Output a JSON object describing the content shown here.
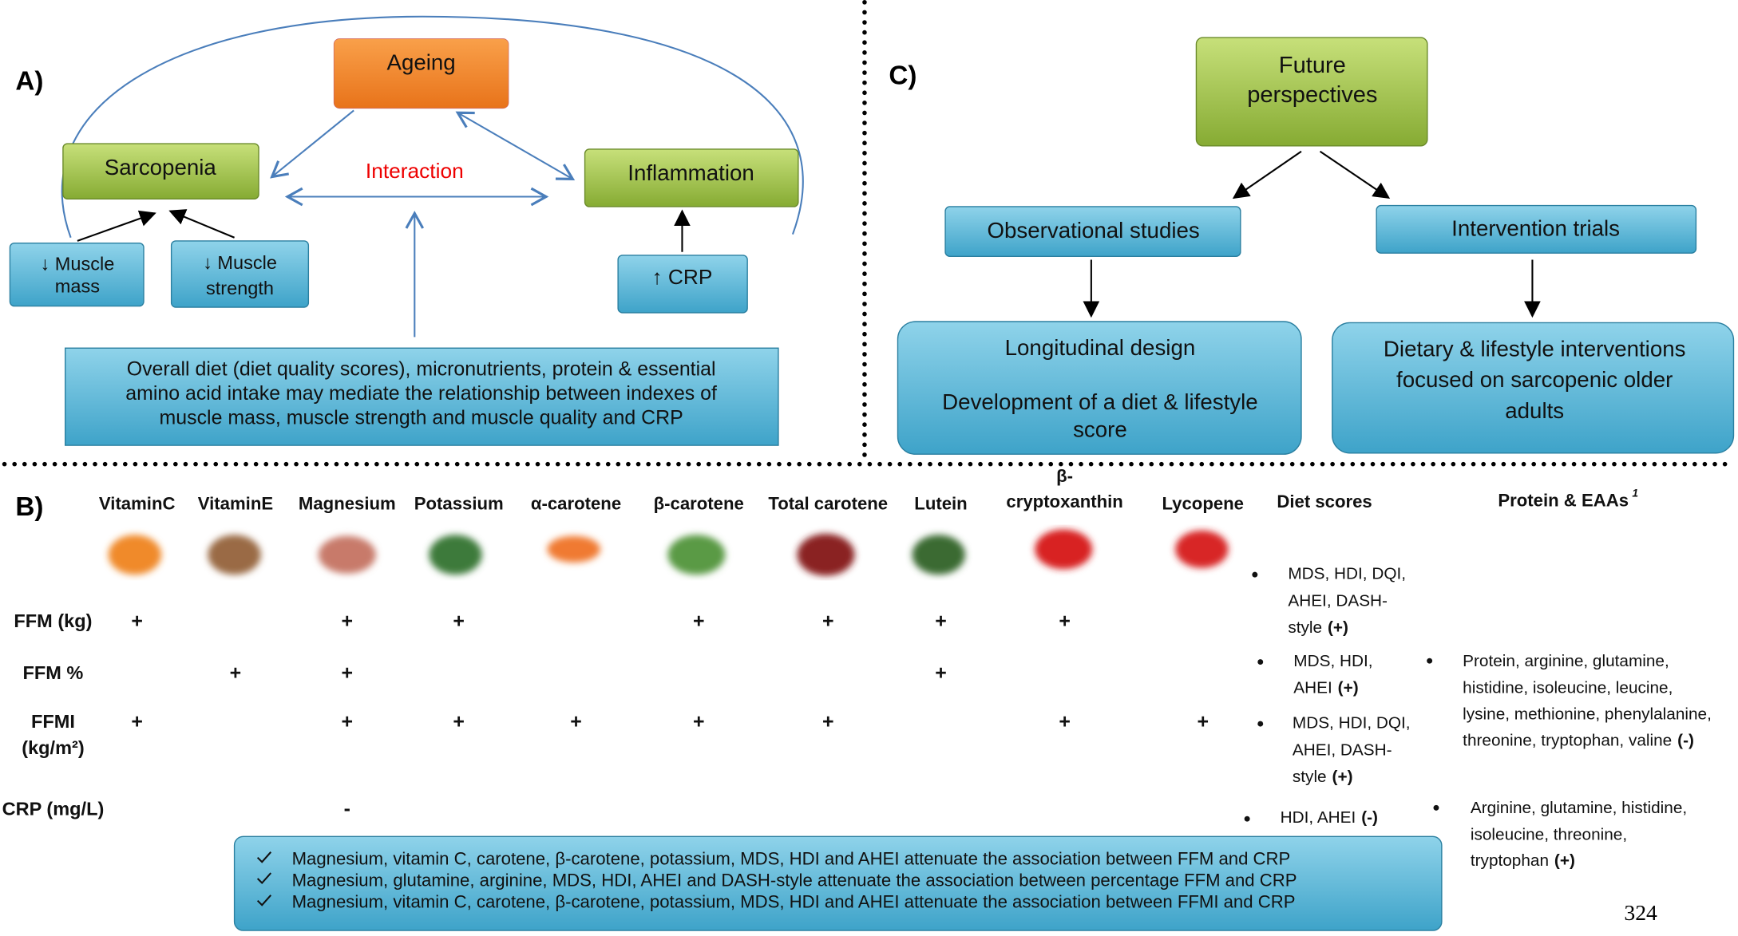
{
  "panel_a": {
    "label": "A)",
    "ageing": "Ageing",
    "sarcopenia": "Sarcopenia",
    "interaction": "Interaction",
    "inflammation": "Inflammation",
    "muscle_mass": [
      "↓ Muscle",
      "mass"
    ],
    "muscle_strength": [
      "↓ Muscle",
      "strength"
    ],
    "crp": "↑ CRP",
    "summary": [
      "Overall diet (diet quality scores), micronutrients, protein & essential",
      "amino acid intake may mediate the relationship between indexes of",
      "muscle mass, muscle strength and muscle quality and CRP"
    ]
  },
  "panel_c": {
    "label": "C)",
    "future": [
      "Future",
      "perspectives"
    ],
    "observational": "Observational studies",
    "intervention": "Intervention trials",
    "longitudinal": [
      "Longitudinal design",
      "Development of a diet & lifestyle",
      "score"
    ],
    "dietary": [
      "Dietary & lifestyle interventions",
      "focused on sarcopenic older",
      "adults"
    ]
  },
  "panel_b": {
    "label": "B)",
    "columns": [
      "VitaminC",
      "VitaminE",
      "Magnesium",
      "Potassium",
      "α-carotene",
      "β-carotene",
      "Total carotene",
      "Lutein",
      [
        "β-",
        "cryptoxanthin"
      ],
      "Lycopene"
    ],
    "diet_header": "Diet scores",
    "protein_header": "Protein & EAAs",
    "protein_note": "1",
    "rows": [
      {
        "label": "FFM (kg)",
        "marks": [
          "+",
          null,
          "+",
          "+",
          null,
          "+",
          "+",
          "+",
          "+",
          null
        ],
        "diet": [
          "MDS, HDI, DQI,",
          "AHEI, DASH-",
          "style"
        ],
        "diet_sign": "(+)"
      },
      {
        "label": "FFM %",
        "marks": [
          null,
          "+",
          "+",
          null,
          null,
          null,
          null,
          "+",
          null,
          null
        ],
        "diet": [
          "MDS, HDI,",
          "AHEI"
        ],
        "diet_sign": "(+)"
      },
      {
        "label": [
          "FFMI",
          "(kg/m²)"
        ],
        "marks": [
          "+",
          null,
          "+",
          "+",
          "+",
          "+",
          "+",
          null,
          "+",
          "+"
        ],
        "diet": [
          "MDS, HDI, DQI,",
          "AHEI, DASH-",
          "style"
        ],
        "diet_sign": "(+)"
      },
      {
        "label": "CRP (mg/L)",
        "marks": [
          null,
          null,
          "-",
          null,
          null,
          null,
          null,
          null,
          null,
          null
        ],
        "diet": [
          "HDI, AHEI"
        ],
        "diet_sign": "(-)"
      }
    ],
    "protein": [
      {
        "lines": [
          "Protein, arginine, glutamine,",
          "histidine, isoleucine, leucine,",
          "lysine, methionine, phenylalanine,",
          "threonine, tryptophan, valine"
        ],
        "sign": "(-)"
      },
      {
        "lines": [
          "Arginine, glutamine, histidine,",
          "isoleucine, threonine,",
          "tryptophan"
        ],
        "sign": "(+)"
      }
    ],
    "summary": [
      "Magnesium, vitamin C, carotene, β-carotene, potassium, MDS, HDI and AHEI attenuate the association between FFM and CRP",
      "Magnesium, glutamine, arginine, MDS, HDI, AHEI and DASH-style attenuate the association between percentage FFM and CRP",
      "Magnesium, vitamin C, carotene, β-carotene, potassium, MDS, HDI and AHEI attenuate the association between FFMI and CRP"
    ]
  },
  "page_number": "324"
}
